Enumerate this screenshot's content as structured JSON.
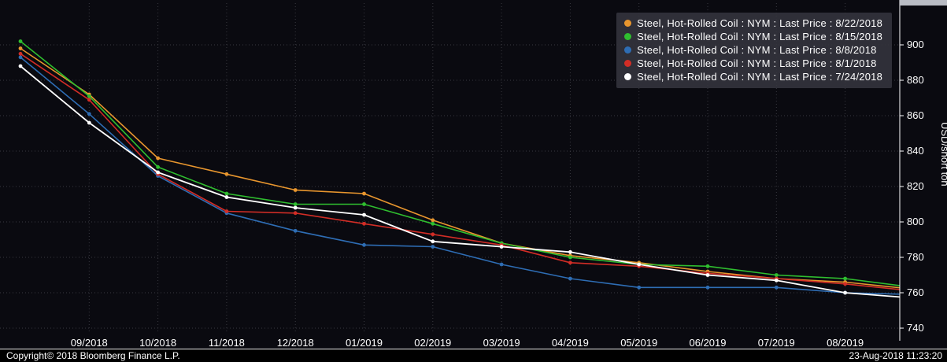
{
  "footer": {
    "copyright": "Copyright© 2018 Bloomberg Finance L.P.",
    "timestamp": "23-Aug-2018 11:23:20"
  },
  "chart_data": {
    "type": "line",
    "title": "",
    "xlabel": "",
    "ylabel": "USD/short ton",
    "x_tick_labels": [
      "09/2018",
      "10/2018",
      "11/2018",
      "12/2018",
      "01/2019",
      "02/2019",
      "03/2019",
      "04/2019",
      "05/2019",
      "06/2019",
      "07/2019",
      "08/2019"
    ],
    "y_ticks": [
      740,
      760,
      780,
      800,
      820,
      840,
      860,
      880,
      900
    ],
    "ylim": [
      735,
      915
    ],
    "grid": "dotted",
    "legend_position": "top-right",
    "colors": {
      "background": "#0a0a10",
      "gridline": "#38383f",
      "axis": "#ffffff",
      "text": "#ffffff"
    },
    "series": [
      {
        "name": "Steel, Hot-Rolled Coil : NYM : Last Price : 8/22/2018",
        "color": "#e8962e",
        "values": [
          898,
          872,
          836,
          827,
          818,
          816,
          801,
          788,
          781,
          777,
          772,
          768,
          766,
          762
        ]
      },
      {
        "name": "Steel, Hot-Rolled Coil : NYM : Last Price : 8/15/2018",
        "color": "#2fbe2f",
        "values": [
          902,
          871,
          831,
          816,
          810,
          810,
          799,
          788,
          780,
          776,
          775,
          770,
          768,
          763
        ]
      },
      {
        "name": "Steel, Hot-Rolled Coil : NYM : Last Price : 8/8/2018",
        "color": "#2e6db4",
        "values": [
          893,
          861,
          826,
          805,
          795,
          787,
          786,
          776,
          768,
          763,
          763,
          763,
          760,
          759
        ]
      },
      {
        "name": "Steel, Hot-Rolled Coil : NYM : Last Price : 8/1/2018",
        "color": "#d22d26",
        "values": [
          895,
          869,
          827,
          806,
          805,
          799,
          793,
          787,
          777,
          775,
          771,
          768,
          765,
          761
        ]
      },
      {
        "name": "Steel, Hot-Rolled Coil : NYM : Last Price : 7/24/2018",
        "color": "#ffffff",
        "values": [
          888,
          856,
          828,
          814,
          808,
          804,
          789,
          786,
          783,
          776,
          770,
          767,
          760,
          757
        ]
      }
    ]
  }
}
